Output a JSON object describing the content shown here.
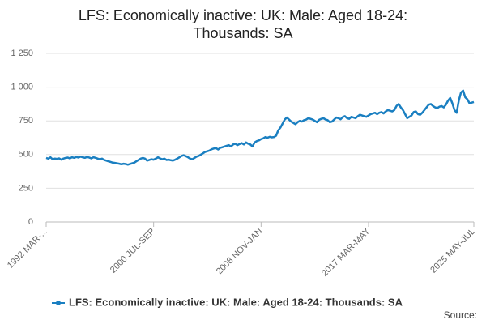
{
  "chart_data": {
    "type": "line",
    "title": "LFS: Economically inactive: UK: Male: Aged 18-24: Thousands: SA",
    "source": "Source:",
    "categories": [
      "1992 MAR-...",
      null,
      null,
      null,
      null,
      null,
      null,
      null,
      null,
      null,
      null,
      null,
      null,
      null,
      null,
      null,
      null,
      null,
      null,
      null,
      null,
      null,
      null,
      null,
      null,
      null,
      null,
      null,
      null,
      null,
      null,
      null,
      null,
      null,
      null,
      null,
      null,
      null,
      null,
      null,
      null,
      null,
      null,
      null,
      null,
      null,
      null,
      null,
      null,
      null,
      "2000 JUL-SEP",
      null,
      null,
      null,
      null,
      null,
      null,
      null,
      null,
      null,
      null,
      null,
      null,
      null,
      null,
      null,
      null,
      null,
      null,
      null,
      null,
      null,
      null,
      null,
      null,
      null,
      null,
      null,
      null,
      null,
      null,
      null,
      null,
      null,
      null,
      null,
      null,
      null,
      null,
      null,
      null,
      null,
      null,
      null,
      null,
      null,
      null,
      null,
      null,
      null,
      "2008 NOV-JAN",
      null,
      null,
      null,
      null,
      null,
      null,
      null,
      null,
      null,
      null,
      null,
      null,
      null,
      null,
      null,
      null,
      null,
      null,
      null,
      null,
      null,
      null,
      null,
      null,
      null,
      null,
      null,
      null,
      null,
      null,
      null,
      null,
      null,
      null,
      null,
      null,
      null,
      null,
      null,
      null,
      null,
      null,
      null,
      null,
      null,
      null,
      null,
      null,
      null,
      "2017 MAR-MAY",
      null,
      null,
      null,
      null,
      null,
      null,
      null,
      null,
      null,
      null,
      null,
      null,
      null,
      null,
      null,
      null,
      null,
      null,
      null,
      null,
      null,
      null,
      null,
      null,
      null,
      null,
      null,
      null,
      null,
      null,
      null,
      null,
      null,
      null,
      null,
      null,
      null,
      null,
      null,
      null,
      null,
      null,
      null,
      null,
      null,
      null,
      null,
      null,
      "2025 MAY-JUL"
    ],
    "series": [
      {
        "name": "LFS: Economically inactive: UK: Male: Aged 18-24: Thousands: SA",
        "color": "#1a7fc1",
        "values": [
          475,
          470,
          480,
          465,
          470,
          468,
          472,
          462,
          470,
          475,
          478,
          472,
          480,
          476,
          482,
          478,
          485,
          480,
          476,
          482,
          478,
          472,
          480,
          476,
          470,
          465,
          470,
          460,
          455,
          450,
          445,
          440,
          438,
          435,
          432,
          428,
          432,
          430,
          425,
          430,
          435,
          440,
          450,
          460,
          470,
          475,
          470,
          455,
          460,
          465,
          462,
          470,
          480,
          472,
          465,
          470,
          460,
          462,
          458,
          455,
          462,
          470,
          480,
          490,
          495,
          488,
          480,
          470,
          465,
          475,
          485,
          490,
          500,
          510,
          520,
          525,
          530,
          540,
          545,
          548,
          538,
          550,
          555,
          560,
          565,
          570,
          560,
          575,
          580,
          570,
          578,
          585,
          575,
          590,
          580,
          575,
          560,
          590,
          600,
          605,
          615,
          620,
          630,
          625,
          632,
          628,
          630,
          640,
          680,
          700,
          730,
          760,
          775,
          760,
          745,
          735,
          725,
          740,
          750,
          745,
          755,
          760,
          770,
          765,
          760,
          750,
          740,
          758,
          765,
          770,
          760,
          755,
          740,
          745,
          760,
          775,
          770,
          762,
          778,
          785,
          770,
          765,
          780,
          775,
          770,
          785,
          795,
          790,
          785,
          780,
          790,
          800,
          805,
          810,
          800,
          810,
          815,
          805,
          820,
          830,
          825,
          820,
          830,
          860,
          875,
          850,
          830,
          800,
          770,
          780,
          790,
          815,
          820,
          800,
          795,
          810,
          830,
          850,
          870,
          875,
          860,
          850,
          845,
          855,
          860,
          850,
          870,
          900,
          920,
          880,
          830,
          810,
          900,
          960,
          975,
          925,
          910,
          880,
          885,
          890
        ]
      }
    ],
    "ylim": [
      0,
      1250
    ],
    "yticks": [
      0,
      250,
      500,
      750,
      {
        "value": 1000,
        "label": "1 000"
      },
      {
        "value": 1250,
        "label": "1 250"
      }
    ],
    "grid": true
  }
}
